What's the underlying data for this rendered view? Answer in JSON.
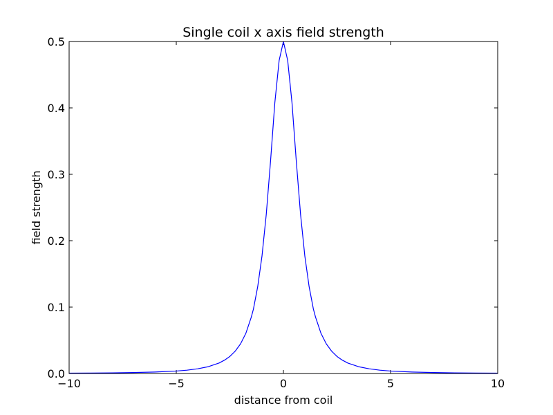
{
  "chart_data": {
    "type": "line",
    "title": "Single coil x axis field strength",
    "xlabel": "distance from coil",
    "ylabel": "field strength",
    "xlim": [
      -10,
      10
    ],
    "ylim": [
      0.0,
      0.5
    ],
    "xticks": [
      -10,
      -5,
      0,
      5,
      10
    ],
    "xtick_labels": [
      "−10",
      "−5",
      "0",
      "5",
      "10"
    ],
    "yticks": [
      0.0,
      0.1,
      0.2,
      0.3,
      0.4,
      0.5
    ],
    "ytick_labels": [
      "0.0",
      "0.1",
      "0.2",
      "0.3",
      "0.4",
      "0.5"
    ],
    "grid": false,
    "series": [
      {
        "color": "#0000ff",
        "x": [
          -10,
          -9,
          -8,
          -7,
          -6,
          -5,
          -4.5,
          -4,
          -3.5,
          -3,
          -2.75,
          -2.5,
          -2.25,
          -2,
          -1.75,
          -1.5,
          -1.4,
          -1.2,
          -1,
          -0.8,
          -0.6,
          -0.4,
          -0.2,
          0,
          0.2,
          0.4,
          0.6,
          0.8,
          1,
          1.2,
          1.4,
          1.5,
          1.75,
          2,
          2.25,
          2.5,
          2.75,
          3,
          3.5,
          4,
          4.5,
          5,
          6,
          7,
          8,
          9,
          10
        ],
        "y": [
          0.0005,
          0.0007,
          0.001,
          0.0014,
          0.0022,
          0.0037,
          0.005,
          0.0071,
          0.0103,
          0.0158,
          0.0201,
          0.0257,
          0.0336,
          0.0447,
          0.0607,
          0.0848,
          0.0969,
          0.1307,
          0.1768,
          0.2397,
          0.3201,
          0.4079,
          0.4713,
          0.5,
          0.4713,
          0.4079,
          0.3201,
          0.2397,
          0.1768,
          0.1307,
          0.0969,
          0.0848,
          0.0607,
          0.0447,
          0.0336,
          0.0257,
          0.0201,
          0.0158,
          0.0103,
          0.0071,
          0.005,
          0.0037,
          0.0022,
          0.0014,
          0.001,
          0.0007,
          0.0005
        ]
      }
    ]
  }
}
